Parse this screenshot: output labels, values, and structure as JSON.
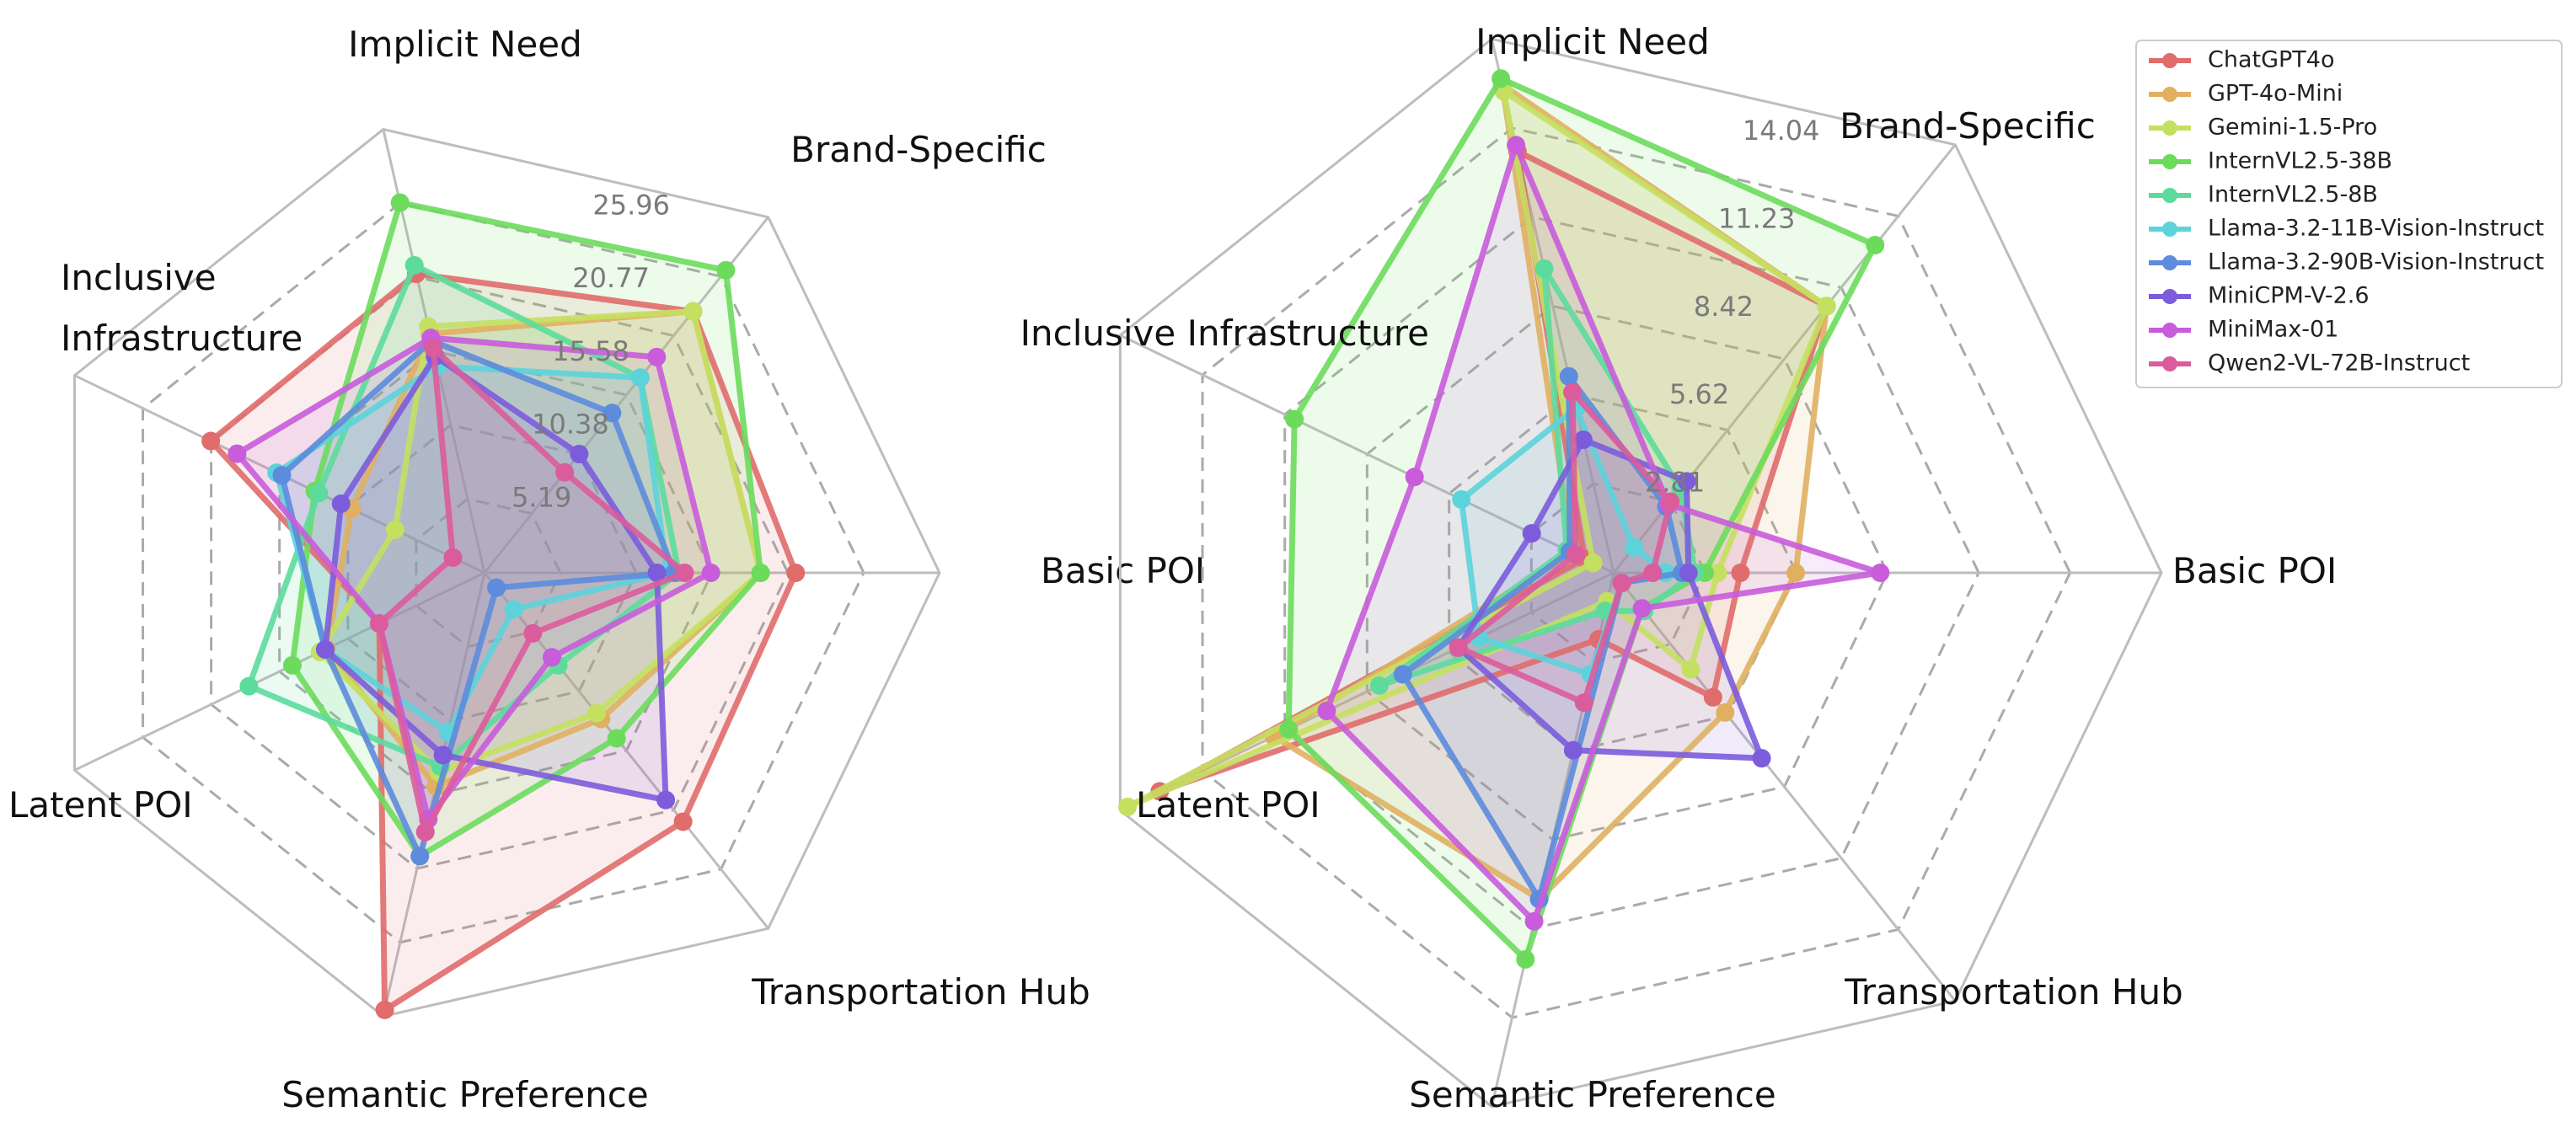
{
  "figure": {
    "legend": [
      {
        "name": "ChatGPT4o",
        "color": "#E06C6C"
      },
      {
        "name": "GPT-4o-Mini",
        "color": "#E0B060"
      },
      {
        "name": "Gemini-1.5-Pro",
        "color": "#C4E060"
      },
      {
        "name": "InternVL2.5-38B",
        "color": "#6CDB5C"
      },
      {
        "name": "InternVL2.5-8B",
        "color": "#5CDB9C"
      },
      {
        "name": "Llama-3.2-11B-Vision-Instruct",
        "color": "#5CD3DB"
      },
      {
        "name": "Llama-3.2-90B-Vision-Instruct",
        "color": "#5C8CDB"
      },
      {
        "name": "MiniCPM-V-2.6",
        "color": "#7C5CDB"
      },
      {
        "name": "MiniMax-01",
        "color": "#C85CDB"
      },
      {
        "name": "Qwen2-VL-72B-Instruct",
        "color": "#DB5C9C"
      }
    ]
  },
  "chart_data": [
    {
      "type": "radar",
      "title": "",
      "axes": [
        "Basic POI",
        "Brand-Specific",
        "Implicit Need",
        "Inclusive Infrastructure",
        "Latent POI",
        "Semantic Preference",
        "Transportation Hub"
      ],
      "axis_label_lines": [
        [
          "Basic POI"
        ],
        [
          "Brand-Specific"
        ],
        [
          "Implicit Need"
        ],
        [
          "Inclusive",
          "Infrastructure"
        ],
        [
          "Latent POI"
        ],
        [
          "Semantic Preference"
        ],
        [
          "Transportation Hub"
        ]
      ],
      "rmax": 31.15,
      "ticks": [
        5.19,
        10.38,
        15.58,
        20.77,
        25.96
      ],
      "tick_labels": [
        "5.19",
        "10.38",
        "15.58",
        "20.77",
        "25.96"
      ],
      "grid": true,
      "series": [
        {
          "name": "ChatGPT4o",
          "values": [
            21.3,
            22.9,
            21.0,
            20.8,
            8.0,
            30.7,
            21.8
          ]
        },
        {
          "name": "GPT-4o-Mini",
          "values": [
            18.9,
            22.9,
            16.8,
            10.1,
            12.0,
            15.0,
            12.8
          ]
        },
        {
          "name": "Gemini-1.5-Pro",
          "values": [
            18.9,
            22.9,
            17.3,
            6.8,
            12.5,
            14.0,
            12.3
          ]
        },
        {
          "name": "InternVL2.5-38B",
          "values": [
            18.9,
            26.5,
            26.0,
            12.9,
            14.6,
            19.9,
            14.5
          ]
        },
        {
          "name": "InternVL2.5-8B",
          "values": [
            13.3,
            17.1,
            21.6,
            12.6,
            17.9,
            13.6,
            8.1
          ]
        },
        {
          "name": "Llama-3.2-11B-Vision-Instruct",
          "values": [
            12.5,
            17.1,
            14.5,
            15.8,
            12.1,
            11.2,
            3.2
          ]
        },
        {
          "name": "Llama-3.2-90B-Vision-Instruct",
          "values": [
            13.0,
            14.0,
            16.3,
            15.4,
            12.1,
            19.9,
            1.3
          ]
        },
        {
          "name": "MiniCPM-V-2.6",
          "values": [
            11.8,
            10.4,
            15.2,
            10.9,
            12.1,
            12.8,
            19.9
          ]
        },
        {
          "name": "MiniMax-01",
          "values": [
            15.5,
            18.9,
            16.5,
            18.8,
            8.0,
            17.3,
            7.4
          ]
        },
        {
          "name": "Qwen2-VL-72B-Instruct",
          "values": [
            13.7,
            8.8,
            15.8,
            2.4,
            8.0,
            18.2,
            5.3
          ]
        }
      ]
    },
    {
      "type": "radar",
      "title": "",
      "axes": [
        "Basic POI",
        "Brand-Specific",
        "Implicit Need",
        "Inclusive Infrastructure",
        "Latent POI",
        "Semantic Preference",
        "Transportation Hub"
      ],
      "axis_label_lines": [
        [
          "Basic POI"
        ],
        [
          "Brand-Specific"
        ],
        [
          "Implicit Need"
        ],
        [
          "Inclusive Infrastructure"
        ],
        [
          "Latent POI"
        ],
        [
          "Semantic Preference"
        ],
        [
          "Transportation Hub"
        ]
      ],
      "rmax": 16.85,
      "ticks": [
        2.81,
        5.62,
        8.42,
        11.23,
        14.04
      ],
      "tick_labels": [
        "2.81",
        "5.62",
        "8.42",
        "11.23",
        "14.04"
      ],
      "grid": true,
      "series": [
        {
          "name": "ChatGPT4o",
          "values": [
            3.9,
            10.5,
            13.3,
            1.0,
            15.5,
            2.1,
            4.9
          ]
        },
        {
          "name": "GPT-4o-Mini",
          "values": [
            5.6,
            10.5,
            15.4,
            1.4,
            11.6,
            10.3,
            5.5
          ]
        },
        {
          "name": "Gemini-1.5-Pro",
          "values": [
            3.2,
            10.5,
            15.2,
            0.7,
            16.6,
            0.9,
            3.8
          ]
        },
        {
          "name": "InternVL2.5-38B",
          "values": [
            2.8,
            12.9,
            15.6,
            10.9,
            11.1,
            12.2,
            1.4
          ]
        },
        {
          "name": "InternVL2.5-8B",
          "values": [
            2.5,
            3.3,
            9.6,
            1.6,
            8.0,
            1.2,
            1.5
          ]
        },
        {
          "name": "Llama-3.2-11B-Vision-Instruct",
          "values": [
            1.6,
            1.0,
            5.2,
            5.2,
            4.6,
            3.2,
            0.4
          ]
        },
        {
          "name": "Llama-3.2-90B-Vision-Instruct",
          "values": [
            2.1,
            2.6,
            6.2,
            1.5,
            7.2,
            10.3,
            0.4
          ]
        },
        {
          "name": "MiniCPM-V-2.6",
          "values": [
            2.3,
            3.6,
            4.2,
            2.8,
            5.3,
            5.6,
            7.3
          ]
        },
        {
          "name": "MiniMax-01",
          "values": [
            8.2,
            2.7,
            13.5,
            6.8,
            9.8,
            11.0,
            1.4
          ]
        },
        {
          "name": "Qwen2-VL-72B-Instruct",
          "values": [
            1.2,
            2.8,
            5.7,
            1.3,
            5.3,
            4.1,
            0.4
          ]
        }
      ]
    }
  ]
}
